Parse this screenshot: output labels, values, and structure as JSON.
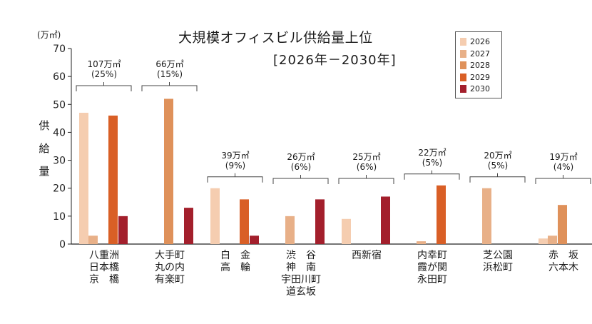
{
  "chart_data": {
    "type": "bar",
    "title": "大規模オフィスビル供給量上位",
    "subtitle": "[2026年－2030年]",
    "unit_label": "(万㎡)",
    "ylabel": "供給量",
    "ylim": [
      0,
      70
    ],
    "yticks": [
      0,
      10,
      20,
      30,
      40,
      50,
      60,
      70
    ],
    "legend_position": "top-right",
    "series": [
      {
        "name": "2026",
        "color": "#f5cdb0",
        "values": [
          47,
          0,
          20,
          0,
          9,
          0,
          0,
          2
        ]
      },
      {
        "name": "2027",
        "color": "#e8b088",
        "values": [
          3,
          0,
          0,
          10,
          0,
          1,
          20,
          3
        ]
      },
      {
        "name": "2028",
        "color": "#df915a",
        "values": [
          0,
          52,
          0,
          0,
          0,
          0,
          0,
          14
        ]
      },
      {
        "name": "2029",
        "color": "#d95f26",
        "values": [
          46,
          0,
          16,
          0,
          0,
          21,
          0,
          0
        ]
      },
      {
        "name": "2030",
        "color": "#a31f2c",
        "values": [
          10,
          13,
          3,
          16,
          17,
          0,
          0,
          0
        ]
      }
    ],
    "categories": [
      {
        "label": "八重洲\n日本橋\n京　橋",
        "total": "107万㎡",
        "share": "(25%)"
      },
      {
        "label": "大手町\n丸の内\n有楽町",
        "total": "66万㎡",
        "share": "(15%)"
      },
      {
        "label": "白　金\n高　輪",
        "total": "39万㎡",
        "share": "(9%)"
      },
      {
        "label": "渋　谷\n神　南\n宇田川町\n道玄坂",
        "total": "26万㎡",
        "share": "(6%)"
      },
      {
        "label": "西新宿",
        "total": "25万㎡",
        "share": "(6%)"
      },
      {
        "label": "内幸町\n霞が関\n永田町",
        "total": "22万㎡",
        "share": "(5%)"
      },
      {
        "label": "芝公園\n浜松町",
        "total": "20万㎡",
        "share": "(5%)"
      },
      {
        "label": "赤　坂\n六本木",
        "total": "19万㎡",
        "share": "(4%)"
      }
    ]
  }
}
